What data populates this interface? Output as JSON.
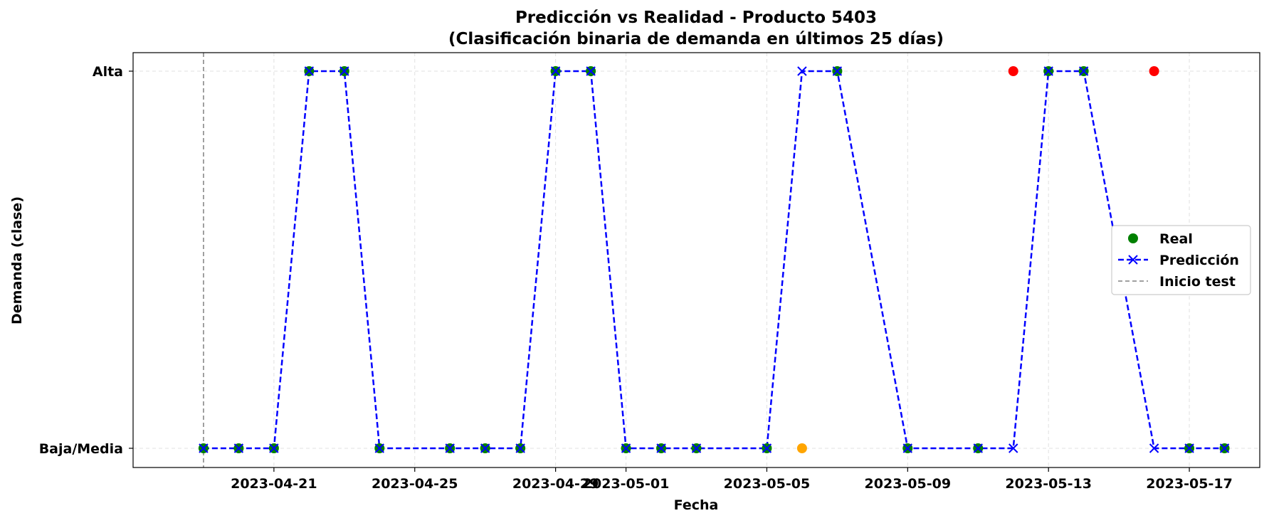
{
  "chart_data": {
    "type": "line",
    "title": "Predicción vs Realidad - Producto 5403",
    "subtitle": "(Clasificación binaria de demanda en últimos 25 días)",
    "xlabel": "Fecha",
    "ylabel": "Demanda (clase)",
    "y_categories": [
      "Baja/Media",
      "Alta"
    ],
    "x_ticks": [
      "2023-04-21",
      "2023-04-25",
      "2023-04-29",
      "2023-05-01",
      "2023-05-05",
      "2023-05-09",
      "2023-05-13",
      "2023-05-17"
    ],
    "xlim": [
      "2023-04-17",
      "2023-05-19"
    ],
    "grid": true,
    "legend_position": "center-right",
    "dates": [
      "2023-04-19",
      "2023-04-20",
      "2023-04-21",
      "2023-04-22",
      "2023-04-23",
      "2023-04-24",
      "2023-04-26",
      "2023-04-27",
      "2023-04-28",
      "2023-04-29",
      "2023-04-30",
      "2023-05-01",
      "2023-05-02",
      "2023-05-03",
      "2023-05-05",
      "2023-05-06",
      "2023-05-07",
      "2023-05-09",
      "2023-05-11",
      "2023-05-12",
      "2023-05-13",
      "2023-05-14",
      "2023-05-16",
      "2023-05-17",
      "2023-05-18"
    ],
    "series": [
      {
        "name": "Real",
        "kind": "scatter",
        "color": "#008000",
        "values": [
          0,
          0,
          0,
          1,
          1,
          0,
          0,
          0,
          0,
          1,
          1,
          0,
          0,
          0,
          0,
          0,
          1,
          0,
          0,
          1,
          1,
          1,
          1,
          0,
          0
        ]
      },
      {
        "name": "Predicción",
        "kind": "line-x",
        "color": "#0000ff",
        "values": [
          0,
          0,
          0,
          1,
          1,
          0,
          0,
          0,
          0,
          1,
          1,
          0,
          0,
          0,
          0,
          1,
          1,
          0,
          0,
          0,
          1,
          1,
          0,
          0,
          0
        ]
      }
    ],
    "mismatch_colors": {
      "Alta": "#ff0000",
      "Baja/Media": "#ffa500"
    },
    "vline": {
      "name": "Inicio test",
      "date": "2023-04-19",
      "color": "#808080"
    }
  }
}
